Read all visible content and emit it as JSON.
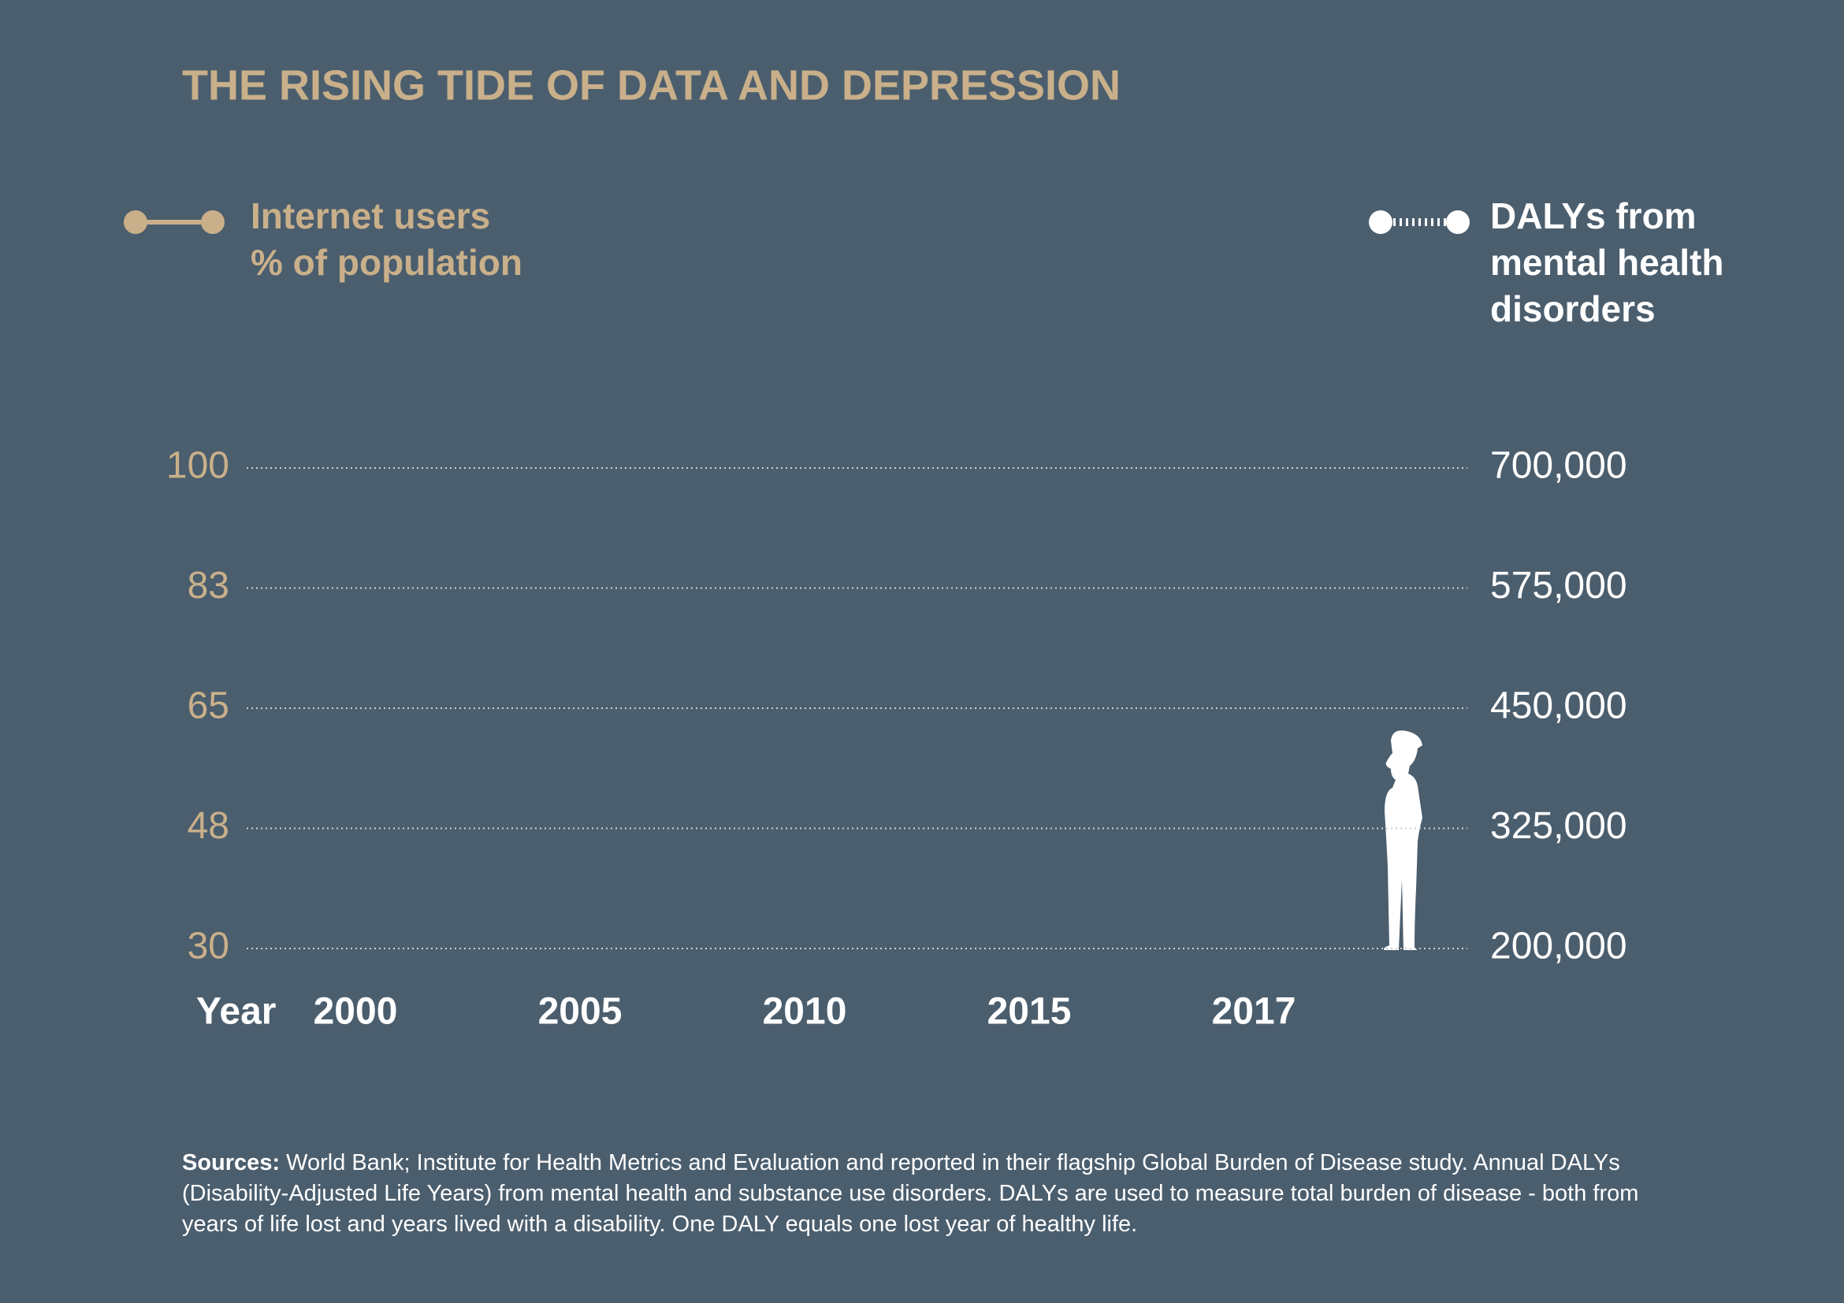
{
  "chart_data": {
    "type": "line",
    "title": "THE RISING TIDE OF DATA AND DEPRESSION",
    "x_label": "Year",
    "categories": [
      "2000",
      "2005",
      "2010",
      "2015",
      "2017"
    ],
    "series": [
      {
        "name": [
          "Internet users",
          "% of population"
        ],
        "color": "#c9b08a",
        "line_style": "solid",
        "values": [
          null,
          null,
          null,
          null,
          null
        ]
      },
      {
        "name": [
          "DALYs from",
          "mental health",
          "disorders"
        ],
        "color": "#ffffff",
        "line_style": "dotted",
        "axis": "y2",
        "values": [
          null,
          null,
          null,
          null,
          null
        ]
      }
    ],
    "ylim": [
      30,
      100
    ],
    "yticks": [
      30,
      {
        "value": 47.5,
        "label": "48"
      },
      65,
      {
        "value": 82.5,
        "label": "83"
      },
      100
    ],
    "y2lim": [
      200000,
      700000
    ],
    "y2ticks": [
      {
        "value": 200000,
        "label": "200,000"
      },
      {
        "value": 325000,
        "label": "325,000"
      },
      {
        "value": 450000,
        "label": "450,000"
      },
      {
        "value": 575000,
        "label": "575,000"
      },
      {
        "value": 700000,
        "label": "700,000"
      }
    ],
    "grid": true,
    "source_label": "Sources:",
    "source_text": "World Bank; Institute for Health Metrics and Evaluation and reported in their flagship Global Burden of Disease study.  Annual DALYs (Disability-Adjusted Life Years) from mental health and substance use disorders. DALYs are used to measure total burden of disease - both from years of life lost and years lived with a disability. One DALY equals one lost year of healthy life."
  }
}
